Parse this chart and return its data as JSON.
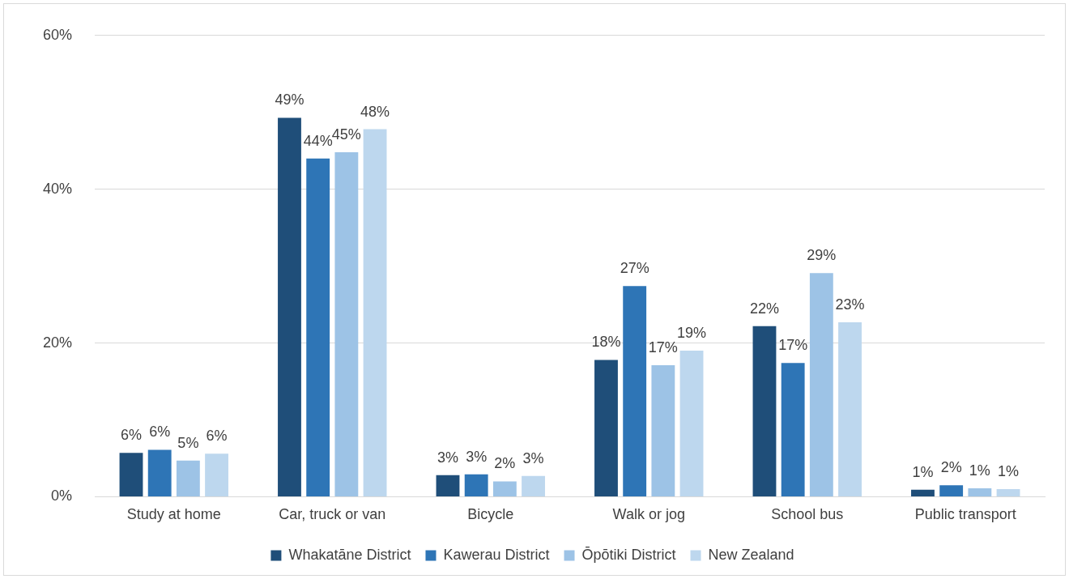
{
  "chart_data": {
    "type": "bar",
    "categories": [
      "Study at home",
      "Car, truck or van",
      "Bicycle",
      "Walk or jog",
      "School bus",
      "Public transport"
    ],
    "series": [
      {
        "name": "Whakatāne District",
        "color": "#1f4e79",
        "values": [
          5.7,
          49.3,
          2.8,
          17.8,
          22.2,
          0.9
        ],
        "value_labels": [
          "6%",
          "49%",
          "3%",
          "18%",
          "22%",
          "1%"
        ]
      },
      {
        "name": "Kawerau District",
        "color": "#2e75b6",
        "values": [
          6.1,
          44.0,
          2.9,
          27.4,
          17.4,
          1.5
        ],
        "value_labels": [
          "6%",
          "44%",
          "3%",
          "27%",
          "17%",
          "2%"
        ]
      },
      {
        "name": "Ōpōtiki District",
        "color": "#9dc3e6",
        "values": [
          4.7,
          44.8,
          2.0,
          17.1,
          29.1,
          1.1
        ],
        "value_labels": [
          "5%",
          "45%",
          "2%",
          "17%",
          "29%",
          "1%"
        ]
      },
      {
        "name": "New Zealand",
        "color": "#bdd7ee",
        "values": [
          5.6,
          47.8,
          2.7,
          19.0,
          22.7,
          1.0
        ],
        "value_labels": [
          "6%",
          "48%",
          "3%",
          "19%",
          "23%",
          "1%"
        ]
      }
    ],
    "ylim": [
      0,
      60
    ],
    "yticks": [
      {
        "value": 0,
        "label": "0%"
      },
      {
        "value": 20,
        "label": "20%"
      },
      {
        "value": 40,
        "label": "40%"
      },
      {
        "value": 60,
        "label": "60%"
      }
    ],
    "grid": "y",
    "legend": "bottom"
  }
}
